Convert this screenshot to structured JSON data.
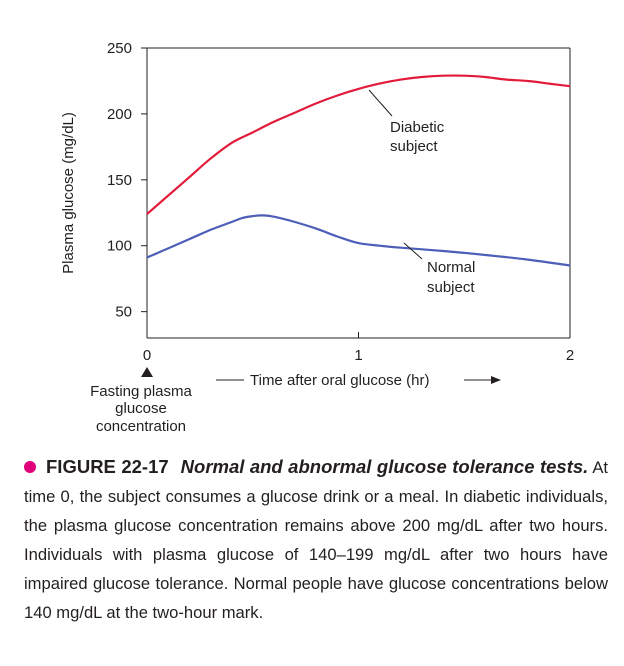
{
  "chart_data": {
    "type": "line",
    "xlabel": "Time after oral glucose (hr)",
    "ylabel": "Plasma glucose (mg/dL)",
    "xlim": [
      0,
      2
    ],
    "ylim": [
      30,
      250
    ],
    "x_ticks": [
      0,
      1,
      2
    ],
    "y_ticks": [
      50,
      100,
      150,
      200,
      250
    ],
    "grid": false,
    "series": [
      {
        "name": "Diabetic subject",
        "color": "#e31b3b",
        "x": [
          0,
          0.1,
          0.2,
          0.3,
          0.4,
          0.5,
          0.6,
          0.7,
          0.8,
          0.9,
          1.0,
          1.1,
          1.2,
          1.3,
          1.4,
          1.5,
          1.6,
          1.7,
          1.8,
          1.9,
          2.0
        ],
        "y": [
          124,
          138,
          152,
          166,
          178,
          186,
          194,
          201,
          208,
          214,
          219,
          223,
          226,
          228,
          229,
          229,
          228,
          226,
          225,
          223,
          221
        ]
      },
      {
        "name": "Normal subject",
        "color": "#4d5fb8",
        "x": [
          0,
          0.1,
          0.2,
          0.3,
          0.4,
          0.45,
          0.5,
          0.55,
          0.6,
          0.7,
          0.8,
          0.9,
          1.0,
          1.1,
          1.2,
          1.4,
          1.6,
          1.8,
          2.0
        ],
        "y": [
          91,
          98,
          105,
          112,
          118,
          121,
          122.5,
          123,
          122,
          118,
          113,
          107,
          102,
          100,
          98.5,
          96,
          93,
          89.5,
          85
        ]
      }
    ],
    "annotations": {
      "diabetic_label_line1": "Diabetic",
      "diabetic_label_line2": "subject",
      "normal_label_line1": "Normal",
      "normal_label_line2": "subject",
      "fasting_line1": "Fasting plasma",
      "fasting_line2": "glucose",
      "fasting_line3": "concentration"
    }
  },
  "caption": {
    "figure_number": "FIGURE 22-17",
    "figure_title": "Normal and abnormal glucose tolerance tests.",
    "body": "At time 0, the subject consumes a glucose drink or a meal. In diabetic individuals, the plasma glucose concentration remains above 200 mg/dL after two hours. Individuals with plasma glucose of 140–199 mg/dL after two hours have impaired glucose tolerance. Normal people have glucose concentrations below 140 mg/dL at the two-hour mark.",
    "bullet_color": "#e0007a"
  }
}
